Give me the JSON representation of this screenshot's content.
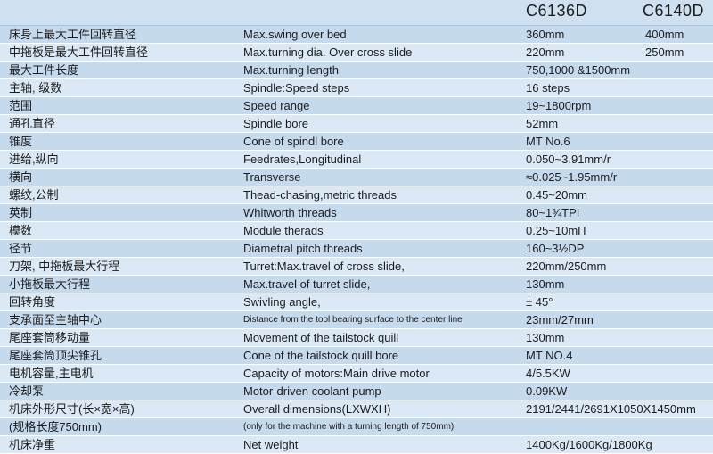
{
  "header": {
    "model1": "C6136D",
    "model2": "C6140D"
  },
  "rows": [
    {
      "cn": "床身上最大工件回转直径",
      "en": "Max.swing over bed",
      "v1": "360mm",
      "v2": "400mm"
    },
    {
      "cn": "中拖板是最大工件回转直径",
      "en": "Max.turning dia. Over cross slide",
      "v1": "220mm",
      "v2": "250mm"
    },
    {
      "cn": "最大工件长度",
      "en": "Max.turning length",
      "v1": "750,1000 &1500mm",
      "v2": ""
    },
    {
      "cn": "主轴, 级数",
      "en": "Spindle:Speed steps",
      "v1": "16 steps",
      "v2": ""
    },
    {
      "cn": "范围",
      "en": "Speed range",
      "v1": "19~1800rpm",
      "v2": ""
    },
    {
      "cn": "通孔直径",
      "en": "Spindle bore",
      "v1": "52mm",
      "v2": ""
    },
    {
      "cn": "锥度",
      "en": "Cone of spindl bore",
      "v1": "MT No.6",
      "v2": ""
    },
    {
      "cn": "进给,纵向",
      "en": "Feedrates,Longitudinal",
      "v1": "0.050~3.91mm/r",
      "v2": ""
    },
    {
      "cn": "横向",
      "en": "Transverse",
      "v1": "≈0.025~1.95mm/r",
      "v2": ""
    },
    {
      "cn": "螺纹,公制",
      "en": "Thead-chasing,metric threads",
      "v1": "0.45~20mm",
      "v2": ""
    },
    {
      "cn": "英制",
      "en": "Whitworth threads",
      "v1": "80~1¾TPI",
      "v2": ""
    },
    {
      "cn": "模数",
      "en": "Module therads",
      "v1": "0.25~10mΠ",
      "v2": ""
    },
    {
      "cn": "径节",
      "en": "Diametral pitch threads",
      "v1": "160~3½DP",
      "v2": ""
    },
    {
      "cn": "刀架, 中拖板最大行程",
      "en": "Turret:Max.travel of cross slide,",
      "v1": "220mm/250mm",
      "v2": ""
    },
    {
      "cn": "小拖板最大行程",
      "en": "Max.travel of turret slide,",
      "v1": "130mm",
      "v2": ""
    },
    {
      "cn": "回转角度",
      "en": "Swivling angle,",
      "v1": "± 45°",
      "v2": ""
    },
    {
      "cn": "支承面至主轴中心",
      "en": "Distance from the tool bearing surface to the center line",
      "v1": "23mm/27mm",
      "v2": "",
      "small": true
    },
    {
      "cn": "尾座套筒移动量",
      "en": "Movement of the tailstock quill",
      "v1": "130mm",
      "v2": ""
    },
    {
      "cn": "尾座套筒顶尖锥孔",
      "en": "Cone of the tailstock quill bore",
      "v1": "MT NO.4",
      "v2": ""
    },
    {
      "cn": "电机容量,主电机",
      "en": "Capacity of motors:Main drive motor",
      "v1": "4/5.5KW",
      "v2": ""
    },
    {
      "cn": "冷却泵",
      "en": "Motor-driven coolant pump",
      "v1": "0.09KW",
      "v2": ""
    },
    {
      "cn": "机床外形尺寸(长×宽×高)",
      "en": "Overall dimensions(LXWXH)",
      "v1": "2191/2441/2691X1050X1450mm",
      "v2": ""
    },
    {
      "cn": "(规格长度750mm)",
      "en": "(only for the machine with a turning length of 750mm)",
      "v1": "",
      "v2": "",
      "small": true
    },
    {
      "cn": "机床净重",
      "en": "Net weight",
      "v1": "1400Kg/1600Kg/1800Kg",
      "v2": ""
    }
  ]
}
